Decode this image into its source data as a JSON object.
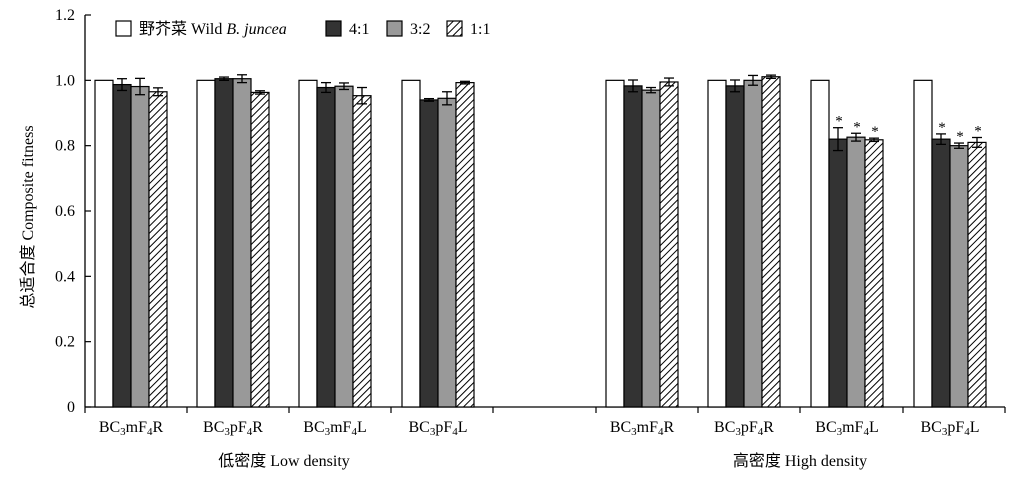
{
  "chart_data": {
    "type": "bar",
    "ylabel": "总适合度 Composite fitness",
    "ylim": [
      0,
      1.2
    ],
    "yticks": [
      "0",
      "0.2",
      "0.4",
      "0.6",
      "0.8",
      "1.0",
      "1.2"
    ],
    "legend_position": "top-left",
    "colors": {
      "wild": "#ffffff",
      "r41": "#333333",
      "r32": "#999999",
      "r11": "hatch"
    },
    "series": [
      {
        "name": "野芥菜 Wild B. juncea",
        "name_prefix": "野芥菜 Wild ",
        "name_italic": "B. juncea",
        "key": "wild"
      },
      {
        "name": "4:1",
        "key": "r41"
      },
      {
        "name": "3:2",
        "key": "r32"
      },
      {
        "name": "1:1",
        "key": "r11"
      }
    ],
    "groups": [
      {
        "label": "低密度 Low density",
        "categories": [
          {
            "label": "BC3mF4R",
            "parts": [
              "BC",
              "3",
              "mF",
              "4",
              "R"
            ],
            "values": [
              1.0,
              0.987,
              0.981,
              0.965
            ],
            "errors": [
              0,
              0.018,
              0.025,
              0.012
            ],
            "stars": [
              false,
              false,
              false,
              false
            ]
          },
          {
            "label": "BC3pF4R",
            "parts": [
              "BC",
              "3",
              "pF",
              "4",
              "R"
            ],
            "values": [
              1.0,
              1.005,
              1.005,
              0.963
            ],
            "errors": [
              0,
              0.005,
              0.012,
              0.005
            ],
            "stars": [
              false,
              false,
              false,
              false
            ]
          },
          {
            "label": "BC3mF4L",
            "parts": [
              "BC",
              "3",
              "mF",
              "4",
              "L"
            ],
            "values": [
              1.0,
              0.978,
              0.982,
              0.953
            ],
            "errors": [
              0,
              0.015,
              0.01,
              0.025
            ],
            "stars": [
              false,
              false,
              false,
              false
            ]
          },
          {
            "label": "BC3pF4L",
            "parts": [
              "BC",
              "3",
              "pF",
              "4",
              "L"
            ],
            "values": [
              1.0,
              0.94,
              0.945,
              0.993
            ],
            "errors": [
              0,
              0.004,
              0.02,
              0.004
            ],
            "stars": [
              false,
              false,
              false,
              false
            ]
          }
        ]
      },
      {
        "label": "高密度 High density",
        "categories": [
          {
            "label": "BC3mF4R",
            "parts": [
              "BC",
              "3",
              "mF",
              "4",
              "R"
            ],
            "values": [
              1.0,
              0.983,
              0.97,
              0.995
            ],
            "errors": [
              0,
              0.018,
              0.008,
              0.012
            ],
            "stars": [
              false,
              false,
              false,
              false
            ]
          },
          {
            "label": "BC3pF4R",
            "parts": [
              "BC",
              "3",
              "pF",
              "4",
              "R"
            ],
            "values": [
              1.0,
              0.983,
              1.0,
              1.011
            ],
            "errors": [
              0,
              0.018,
              0.015,
              0.005
            ],
            "stars": [
              false,
              false,
              false,
              false
            ]
          },
          {
            "label": "BC3mF4L",
            "parts": [
              "BC",
              "3",
              "mF",
              "4",
              "L"
            ],
            "values": [
              1.0,
              0.82,
              0.826,
              0.818
            ],
            "errors": [
              0,
              0.035,
              0.012,
              0.005
            ],
            "stars": [
              false,
              true,
              true,
              true
            ]
          },
          {
            "label": "BC3pF4L",
            "parts": [
              "BC",
              "3",
              "pF",
              "4",
              "L"
            ],
            "values": [
              1.0,
              0.82,
              0.8,
              0.81
            ],
            "errors": [
              0,
              0.016,
              0.008,
              0.015
            ],
            "stars": [
              false,
              true,
              true,
              true
            ]
          }
        ]
      }
    ],
    "annotation_symbol": "*"
  }
}
